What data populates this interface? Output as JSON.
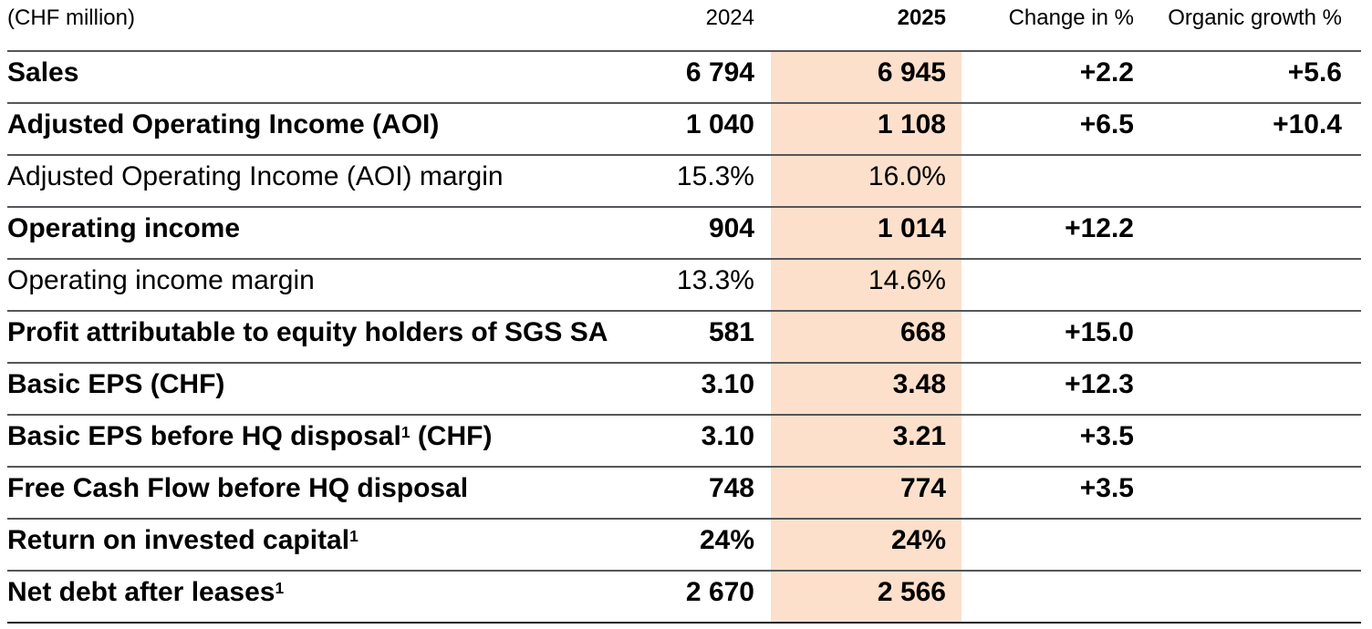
{
  "table": {
    "unit_label": "(CHF million)",
    "highlight_color": "#fce0cb",
    "columns": {
      "y2024": "2024",
      "y2025": "2025",
      "change": "Change in %",
      "organic": "Organic growth %"
    },
    "rows": [
      {
        "label": "Sales",
        "v2024": "6 794",
        "v2025": "6 945",
        "change": "+2.2",
        "organic": "+5.6"
      },
      {
        "label": "Adjusted Operating Income (AOI)",
        "v2024": "1 040",
        "v2025": "1 108",
        "change": "+6.5",
        "organic": "+10.4"
      },
      {
        "label": "Adjusted Operating Income (AOI) margin",
        "v2024": "15.3%",
        "v2025": "16.0%"
      },
      {
        "label": "Operating income",
        "v2024": "904",
        "v2025": "1 014",
        "change": "+12.2"
      },
      {
        "label": "Operating income margin",
        "v2024": "13.3%",
        "v2025": "14.6%"
      },
      {
        "label": "Profit attributable to equity holders of SGS SA",
        "v2024": "581",
        "v2025": "668",
        "change": "+15.0"
      },
      {
        "label": "Basic EPS (CHF)",
        "v2024": "3.10",
        "v2025": "3.48",
        "change": "+12.3"
      },
      {
        "label": "Basic EPS before HQ disposal",
        "sup": "1",
        "label_suffix": " (CHF)",
        "v2024": "3.10",
        "v2025": "3.21",
        "change": "+3.5"
      },
      {
        "label": "Free Cash Flow before HQ disposal",
        "v2024": "748",
        "v2025": "774",
        "change": "+3.5"
      },
      {
        "label": "Return on invested capital",
        "sup": "1",
        "v2024": "24%",
        "v2025": "24%"
      },
      {
        "label": "Net debt after leases",
        "sup": "1",
        "v2024": "2 670",
        "v2025": "2 566"
      }
    ]
  }
}
